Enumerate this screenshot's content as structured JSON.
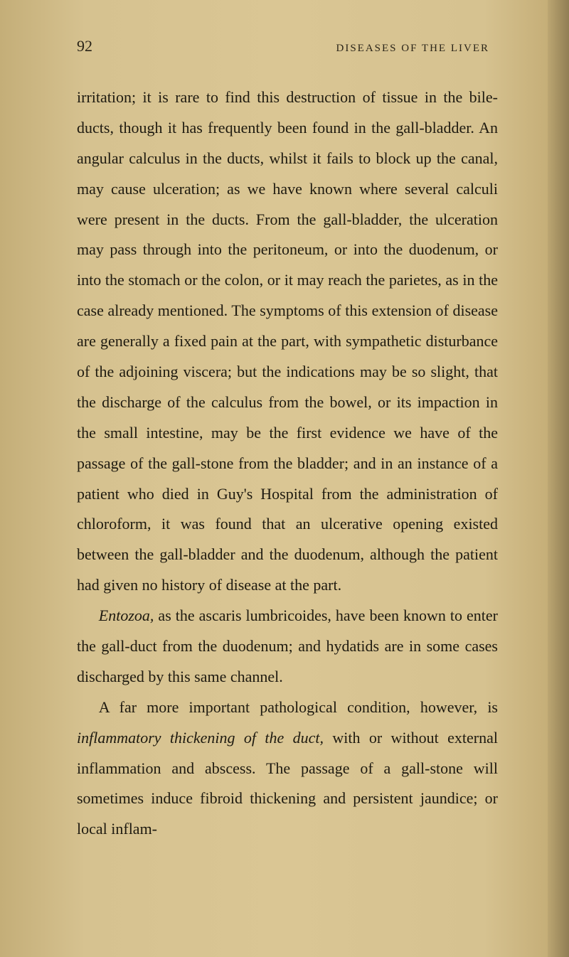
{
  "page": {
    "number": "92",
    "runningTitle": "DISEASES OF THE LIVER",
    "background_color": "#d4c08a",
    "text_color": "#1e1a10",
    "font_family": "Georgia, serif",
    "body_font_size": 22,
    "line_height": 1.95,
    "header_font_size": 15,
    "page_number_font_size": 22,
    "letter_spacing_header": 2
  },
  "paragraphs": {
    "p1": "irritation; it is rare to find this destruction of tissue in the bile-ducts, though it has frequently been found in the gall-bladder. An angular calculus in the ducts, whilst it fails to block up the canal, may cause ulceration; as we have known where several calculi were present in the ducts. From the gall-bladder, the ulceration may pass through into the peritoneum, or into the duodenum, or into the stomach or the colon, or it may reach the parietes, as in the case already mentioned. The symptoms of this extension of disease are generally a fixed pain at the part, with sympathetic disturbance of the adjoining viscera; but the indications may be so slight, that the discharge of the calculus from the bowel, or its impaction in the small intestine, may be the first evidence we have of the passage of the gall-stone from the bladder; and in an instance of a patient who died in Guy's Hospital from the administration of chloroform, it was found that an ulcerative opening existed between the gall-bladder and the duodenum, although the patient had given no history of disease at the part.",
    "p2_italic": "Entozoa,",
    "p2_rest": " as the ascaris lumbricoides, have been known to enter the gall-duct from the duodenum; and hydatids are in some cases discharged by this same channel.",
    "p3_pre": "A far more important pathological condition, however, is ",
    "p3_italic": "inflammatory thickening of the duct,",
    "p3_post": " with or without external inflammation and abscess. The passage of a gall-stone will sometimes induce fibroid thickening and persistent jaundice; or local inflam-"
  }
}
